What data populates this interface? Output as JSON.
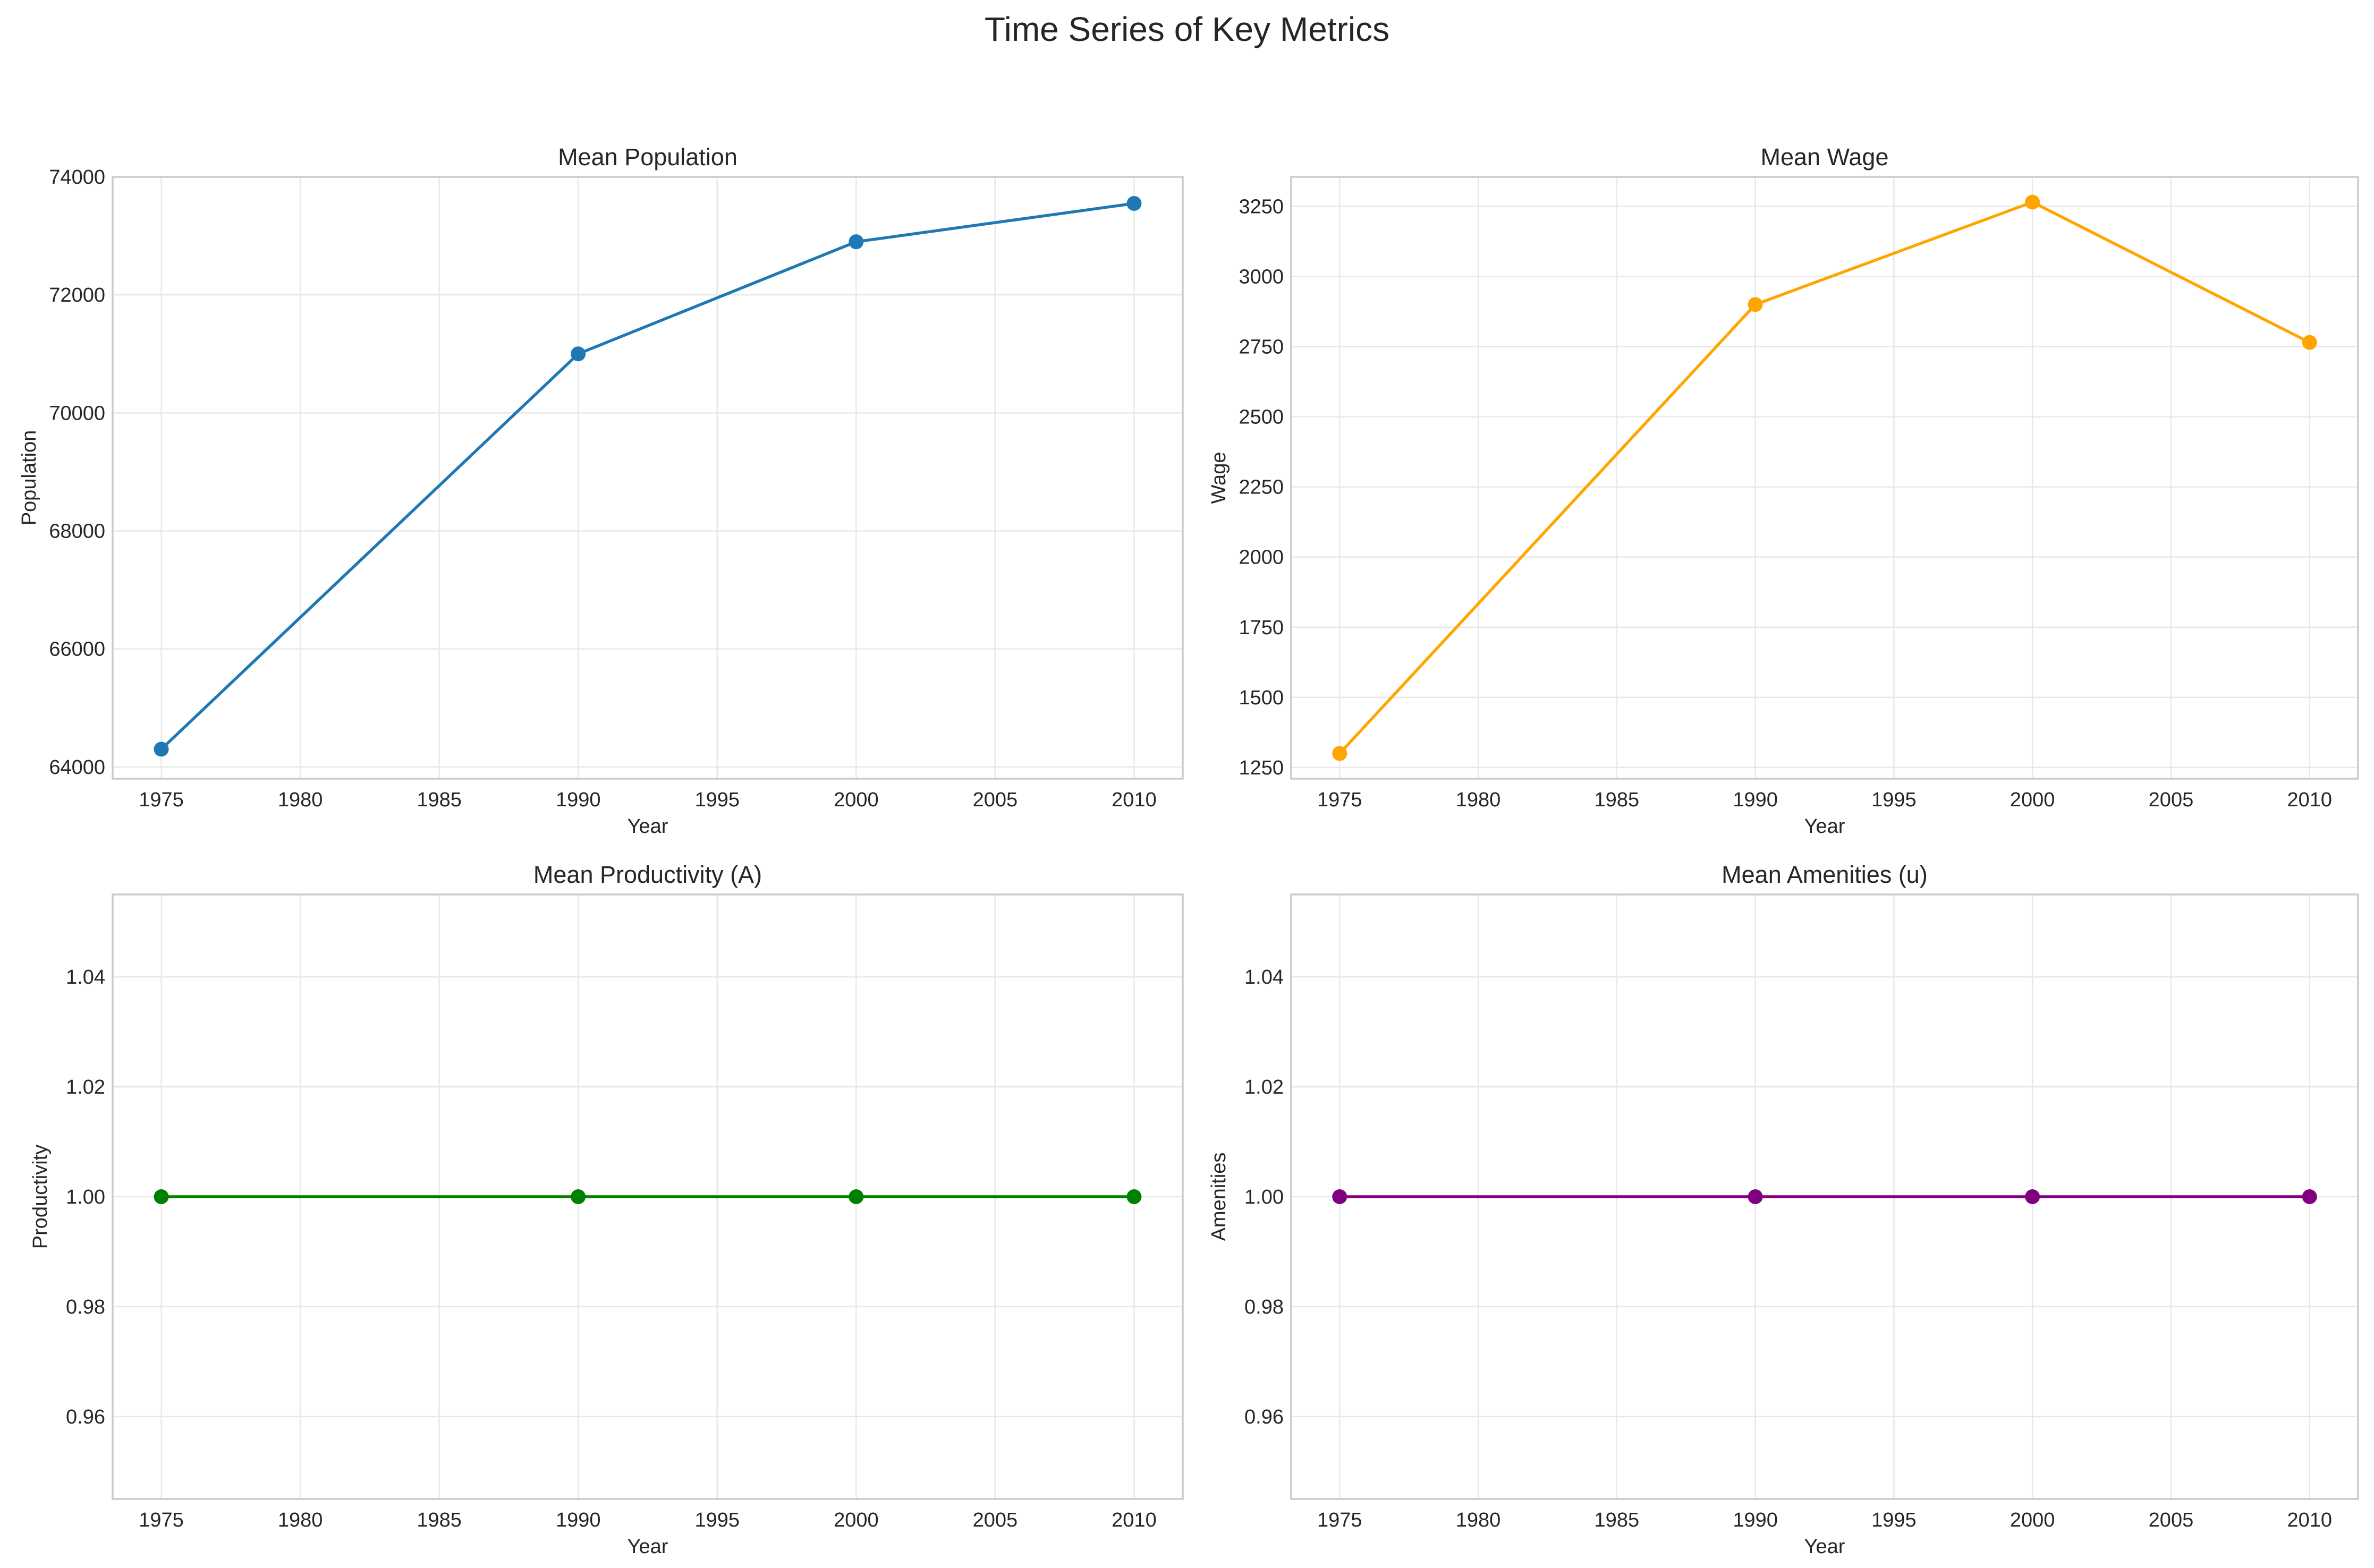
{
  "figure": {
    "title": "Time Series of Key Metrics"
  },
  "chart_data": [
    {
      "type": "line",
      "title": "Mean Population",
      "xlabel": "Year",
      "ylabel": "Population",
      "x": [
        1975,
        1990,
        2000,
        2010
      ],
      "series": [
        {
          "values": [
            64300,
            71000,
            72900,
            73550
          ],
          "color": "#1f77b4",
          "marker": "circle"
        }
      ],
      "xlim": [
        1973.25,
        2011.75
      ],
      "ylim": [
        63800,
        74000
      ],
      "xticks": [
        1975,
        1980,
        1985,
        1990,
        1995,
        2000,
        2005,
        2010
      ],
      "yticks": [
        64000,
        66000,
        68000,
        70000,
        72000,
        74000
      ],
      "ytick_labels": [
        "64000",
        "66000",
        "68000",
        "70000",
        "72000",
        "74000"
      ],
      "grid": true
    },
    {
      "type": "line",
      "title": "Mean Wage",
      "xlabel": "Year",
      "ylabel": "Wage",
      "x": [
        1975,
        1990,
        2000,
        2010
      ],
      "series": [
        {
          "values": [
            1300,
            2900,
            3265,
            2765
          ],
          "color": "#ffa500",
          "marker": "circle"
        }
      ],
      "xlim": [
        1973.25,
        2011.75
      ],
      "ylim": [
        1210,
        3355
      ],
      "xticks": [
        1975,
        1980,
        1985,
        1990,
        1995,
        2000,
        2005,
        2010
      ],
      "yticks": [
        1250,
        1500,
        1750,
        2000,
        2250,
        2500,
        2750,
        3000,
        3250
      ],
      "ytick_labels": [
        "1250",
        "1500",
        "1750",
        "2000",
        "2250",
        "2500",
        "2750",
        "3000",
        "3250"
      ],
      "grid": true
    },
    {
      "type": "line",
      "title": "Mean Productivity (A)",
      "xlabel": "Year",
      "ylabel": "Productivity",
      "x": [
        1975,
        1990,
        2000,
        2010
      ],
      "series": [
        {
          "values": [
            1.0,
            1.0,
            1.0,
            1.0
          ],
          "color": "#008000",
          "marker": "circle"
        }
      ],
      "xlim": [
        1973.25,
        2011.75
      ],
      "ylim": [
        0.945,
        1.055
      ],
      "xticks": [
        1975,
        1980,
        1985,
        1990,
        1995,
        2000,
        2005,
        2010
      ],
      "yticks": [
        0.96,
        0.98,
        1.0,
        1.02,
        1.04
      ],
      "ytick_labels": [
        "0.96",
        "0.98",
        "1.00",
        "1.02",
        "1.04"
      ],
      "grid": true
    },
    {
      "type": "line",
      "title": "Mean Amenities (u)",
      "xlabel": "Year",
      "ylabel": "Amenities",
      "x": [
        1975,
        1990,
        2000,
        2010
      ],
      "series": [
        {
          "values": [
            1.0,
            1.0,
            1.0,
            1.0
          ],
          "color": "#800080",
          "marker": "circle"
        }
      ],
      "xlim": [
        1973.25,
        2011.75
      ],
      "ylim": [
        0.945,
        1.055
      ],
      "xticks": [
        1975,
        1980,
        1985,
        1990,
        1995,
        2000,
        2005,
        2010
      ],
      "yticks": [
        0.96,
        0.98,
        1.0,
        1.02,
        1.04
      ],
      "ytick_labels": [
        "0.96",
        "0.98",
        "1.00",
        "1.02",
        "1.04"
      ],
      "grid": true
    }
  ]
}
